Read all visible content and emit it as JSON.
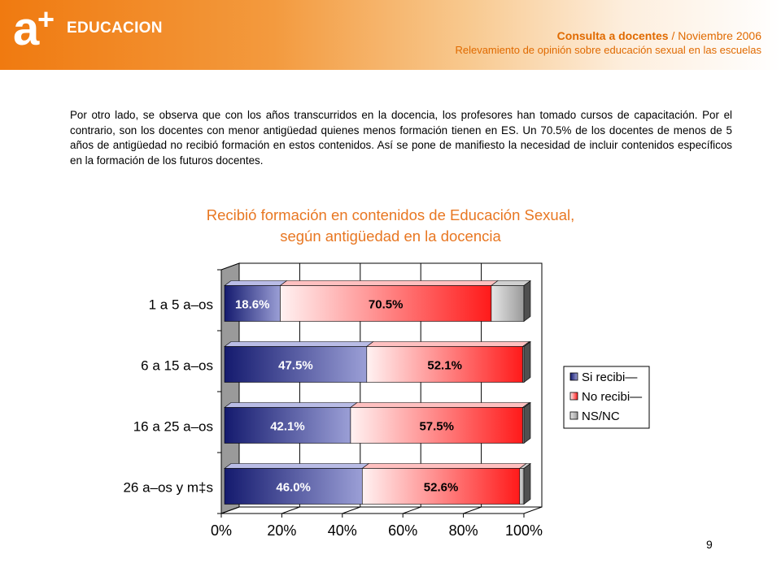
{
  "header": {
    "logo_a": "a",
    "logo_plus": "+",
    "logo_word": "EDUCACION",
    "title_bold": "Consulta a docentes",
    "title_rest": " / Noviembre 2006",
    "subtitle": "Relevamiento de opinión sobre educación sexual en las escuelas"
  },
  "paragraph": "Por otro lado, se observa que con los años transcurridos en la docencia, los profesores han tomado cursos de capacitación. Por el contrario, son los docentes con menor antigüedad quienes menos formación tienen en ES. Un 70.5% de los docentes de menos de 5 años de antigüedad no recibió formación en estos contenidos. Así se pone de manifiesto la necesidad de incluir contenidos específicos en la formación de los futuros docentes.",
  "chart_title_1": "Recibió formación en contenidos de Educación Sexual,",
  "chart_title_2": "según antigüedad en la docencia",
  "page_number": "9",
  "colors": {
    "header_orange": "#f07a10",
    "title_orange": "#e87722",
    "series_si": "#1a1f7a",
    "series_no": "#ff2020",
    "series_ns": "#bdbdbd"
  },
  "chart_data": {
    "type": "bar",
    "orientation": "horizontal",
    "stacked": "100%",
    "categories": [
      "1 a 5 a–os",
      "6 a 15 a–os",
      "16 a 25 a–os",
      "26 a–os y m‡s"
    ],
    "series": [
      {
        "name": "Si recibi—",
        "values": [
          18.6,
          47.5,
          42.1,
          46.0
        ],
        "labels": [
          "18.6%",
          "47.5%",
          "42.1%",
          "46.0%"
        ]
      },
      {
        "name": "No recibi—",
        "values": [
          70.5,
          52.1,
          57.5,
          52.6
        ],
        "labels": [
          "70.5%",
          "52.1%",
          "57.5%",
          "52.6%"
        ]
      },
      {
        "name": "NS/NC",
        "values": [
          10.9,
          0.4,
          0.4,
          1.4
        ],
        "labels": []
      }
    ],
    "xlim": [
      0,
      100
    ],
    "xticks": [
      "0%",
      "20%",
      "40%",
      "60%",
      "80%",
      "100%"
    ],
    "grid": true,
    "legend": "right",
    "three_d": true
  }
}
